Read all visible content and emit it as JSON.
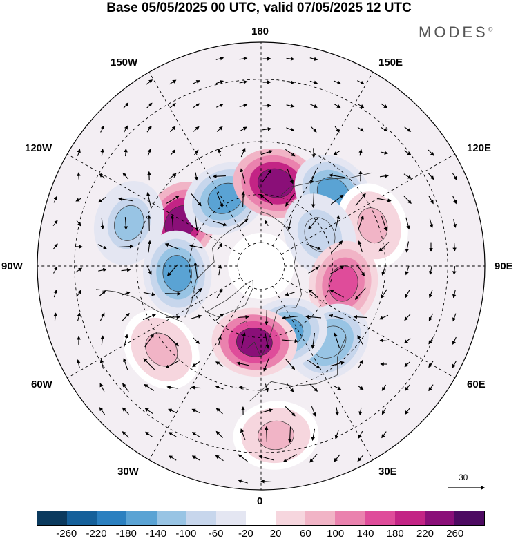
{
  "header": {
    "title": "Base 05/05/2025 00 UTC, valid 07/05/2025 12 UTC",
    "brand": "MODES",
    "brand_mark": "©"
  },
  "map": {
    "projection": "north-polar-stereographic",
    "longitude_labels": {
      "top": "180",
      "bottom": "0",
      "left": "90W",
      "right": "90E",
      "upper_left_1": "150W",
      "upper_left_2": "120W",
      "lower_left_1": "60W",
      "lower_left_2": "30W",
      "upper_right_1": "150E",
      "upper_right_2": "120E",
      "lower_right_1": "60E",
      "lower_right_2": "30E"
    },
    "reference_vector": "30",
    "anomaly_centers": [
      {
        "lon": -118,
        "lat": 52,
        "value": 240,
        "kind": "positive"
      },
      {
        "lon": -152,
        "lat": 58,
        "value": -180,
        "kind": "negative"
      },
      {
        "lon": 170,
        "lat": 55,
        "value": 240,
        "kind": "positive"
      },
      {
        "lon": 135,
        "lat": 48,
        "value": -160,
        "kind": "negative"
      },
      {
        "lon": 110,
        "lat": 42,
        "value": 60,
        "kind": "positive"
      },
      {
        "lon": 118,
        "lat": 62,
        "value": -100,
        "kind": "negative"
      },
      {
        "lon": 78,
        "lat": 55,
        "value": 170,
        "kind": "positive"
      },
      {
        "lon": 42,
        "lat": 48,
        "value": -140,
        "kind": "negative"
      },
      {
        "lon": 20,
        "lat": 60,
        "value": -160,
        "kind": "negative"
      },
      {
        "lon": -5,
        "lat": 58,
        "value": 230,
        "kind": "positive"
      },
      {
        "lon": -85,
        "lat": 55,
        "value": -170,
        "kind": "negative"
      },
      {
        "lon": -108,
        "lat": 35,
        "value": -120,
        "kind": "negative"
      },
      {
        "lon": -50,
        "lat": 38,
        "value": 70,
        "kind": "positive"
      },
      {
        "lon": 5,
        "lat": 25,
        "value": 60,
        "kind": "positive"
      }
    ]
  },
  "colorbar": {
    "colors": [
      "#0b3a5e",
      "#15609a",
      "#2b80c0",
      "#5aa3d4",
      "#98c4e4",
      "#c7d6ec",
      "#e4e6f2",
      "#ffffff",
      "#f6d6de",
      "#f1b4c6",
      "#ea82ae",
      "#df4c9a",
      "#c32485",
      "#8a0f78",
      "#4d0a61"
    ],
    "ticks": [
      "-260",
      "-220",
      "-180",
      "-140",
      "-100",
      "-60",
      "-20",
      "20",
      "60",
      "100",
      "140",
      "180",
      "220",
      "260"
    ]
  }
}
